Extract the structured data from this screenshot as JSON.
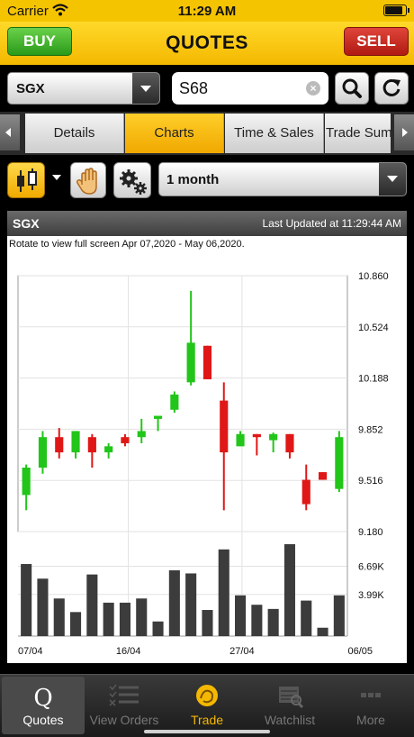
{
  "status_bar": {
    "carrier": "Carrier",
    "time": "11:29 AM",
    "battery_level": 0.9
  },
  "header": {
    "title": "QUOTES",
    "buy_label": "BUY",
    "sell_label": "SELL"
  },
  "search": {
    "exchange": "SGX",
    "symbol": "S68"
  },
  "tabs": [
    {
      "label": "Details",
      "active": false
    },
    {
      "label": "Charts",
      "active": true
    },
    {
      "label": "Time & Sales",
      "active": false
    },
    {
      "label": "Trade Summary",
      "active": false
    }
  ],
  "toolbar": {
    "period": "1 month",
    "icons": [
      "candlestick-icon",
      "hand-icon",
      "gears-icon"
    ]
  },
  "chart_panel": {
    "exchange": "SGX",
    "last_updated": "Last Updated at 11:29:44 AM",
    "note": "Rotate to view full screen Apr 07,2020 - May 06,2020."
  },
  "colors": {
    "up": "#22c51a",
    "down": "#e01717",
    "volume": "#3c3c3c",
    "accent": "#f5c400"
  },
  "chart_data": {
    "type": "candlestick",
    "price_ticks": [
      "10.860",
      "10.524",
      "10.188",
      "9.852",
      "9.516",
      "9.180"
    ],
    "ylim": [
      9.18,
      10.86
    ],
    "volume_ticks": [
      "6.69K",
      "3.99K"
    ],
    "volume_max": 8.8,
    "x_ticks": [
      {
        "label": "07/04",
        "index": 0
      },
      {
        "label": "16/04",
        "index": 6.7
      },
      {
        "label": "27/04",
        "index": 13.6
      },
      {
        "label": "06/05",
        "index": 20
      }
    ],
    "candles": [
      {
        "o": 9.42,
        "h": 9.62,
        "l": 9.32,
        "c": 9.6,
        "v": 6.9
      },
      {
        "o": 9.6,
        "h": 9.84,
        "l": 9.56,
        "c": 9.8,
        "v": 5.5
      },
      {
        "o": 9.8,
        "h": 9.86,
        "l": 9.66,
        "c": 9.7,
        "v": 3.6
      },
      {
        "o": 9.7,
        "h": 9.84,
        "l": 9.66,
        "c": 9.84,
        "v": 2.3
      },
      {
        "o": 9.8,
        "h": 9.82,
        "l": 9.6,
        "c": 9.7,
        "v": 5.9
      },
      {
        "o": 9.7,
        "h": 9.76,
        "l": 9.66,
        "c": 9.74,
        "v": 3.2
      },
      {
        "o": 9.8,
        "h": 9.82,
        "l": 9.74,
        "c": 9.76,
        "v": 3.2
      },
      {
        "o": 9.8,
        "h": 9.92,
        "l": 9.76,
        "c": 9.84,
        "v": 3.6
      },
      {
        "o": 9.92,
        "h": 9.94,
        "l": 9.84,
        "c": 9.94,
        "v": 1.4
      },
      {
        "o": 9.98,
        "h": 10.1,
        "l": 9.96,
        "c": 10.08,
        "v": 6.3
      },
      {
        "o": 10.16,
        "h": 10.76,
        "l": 10.14,
        "c": 10.42,
        "v": 6.0
      },
      {
        "o": 10.4,
        "h": 10.4,
        "l": 10.18,
        "c": 10.18,
        "v": 2.5
      },
      {
        "o": 10.04,
        "h": 10.16,
        "l": 9.32,
        "c": 9.7,
        "v": 8.3
      },
      {
        "o": 9.74,
        "h": 9.84,
        "l": 9.74,
        "c": 9.82,
        "v": 3.9
      },
      {
        "o": 9.82,
        "h": 9.82,
        "l": 9.68,
        "c": 9.8,
        "v": 3.0
      },
      {
        "o": 9.78,
        "h": 9.83,
        "l": 9.7,
        "c": 9.82,
        "v": 2.6
      },
      {
        "o": 9.82,
        "h": 9.82,
        "l": 9.66,
        "c": 9.7,
        "v": 8.8
      },
      {
        "o": 9.52,
        "h": 9.62,
        "l": 9.32,
        "c": 9.36,
        "v": 3.4
      },
      {
        "o": 9.57,
        "h": 9.57,
        "l": 9.52,
        "c": 9.52,
        "v": 0.8
      },
      {
        "o": 9.46,
        "h": 9.84,
        "l": 9.44,
        "c": 9.8,
        "v": 3.9
      }
    ],
    "grid": true
  },
  "tabbar": [
    {
      "label": "Quotes",
      "icon": "quotes-icon",
      "active": true
    },
    {
      "label": "View Orders",
      "icon": "view-orders-icon",
      "active": false
    },
    {
      "label": "Trade",
      "icon": "trade-icon",
      "active": false
    },
    {
      "label": "Watchlist",
      "icon": "watchlist-icon",
      "active": false
    },
    {
      "label": "More",
      "icon": "more-icon",
      "active": false
    }
  ]
}
